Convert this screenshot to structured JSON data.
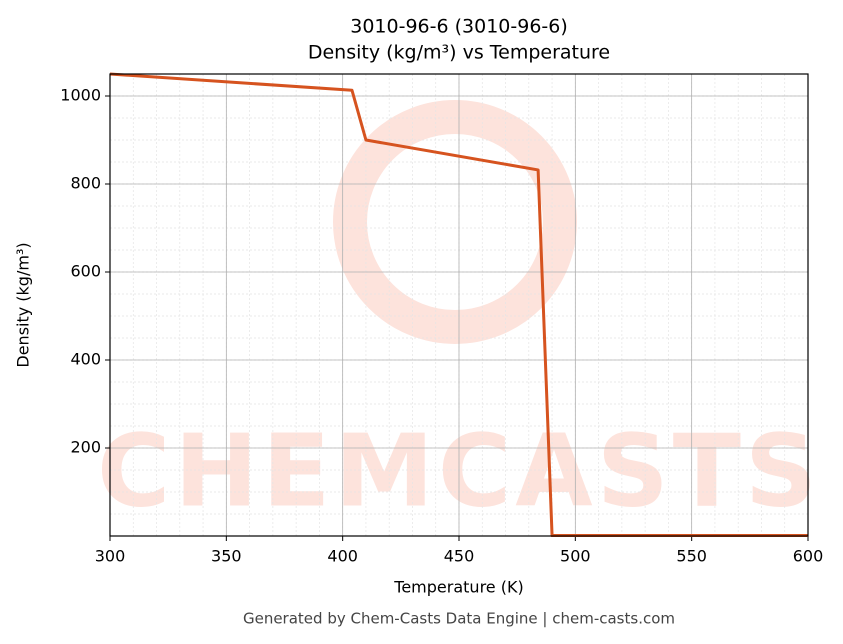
{
  "chart_data": {
    "type": "line",
    "title": "3010-96-6 (3010-96-6)",
    "subtitle": "Density (kg/m³) vs Temperature",
    "x_label": "Temperature (K)",
    "y_label": "Density (kg/m³)",
    "x": [
      300,
      404,
      410,
      484,
      490,
      600
    ],
    "series": [
      {
        "name": "Density",
        "color": "#d6531f",
        "values": [
          1050,
          1013,
          900,
          832,
          1,
          1
        ]
      }
    ],
    "xlim": [
      300,
      600
    ],
    "xticks": [
      300,
      350,
      400,
      450,
      500,
      550,
      600
    ],
    "ylim": [
      0,
      1050
    ],
    "yticks": [
      200,
      400,
      600,
      800,
      1000
    ],
    "grid": true,
    "minor_grid": true,
    "watermark": "CHEMCASTS",
    "footer": "Generated by Chem-Casts Data Engine | chem-casts.com"
  }
}
